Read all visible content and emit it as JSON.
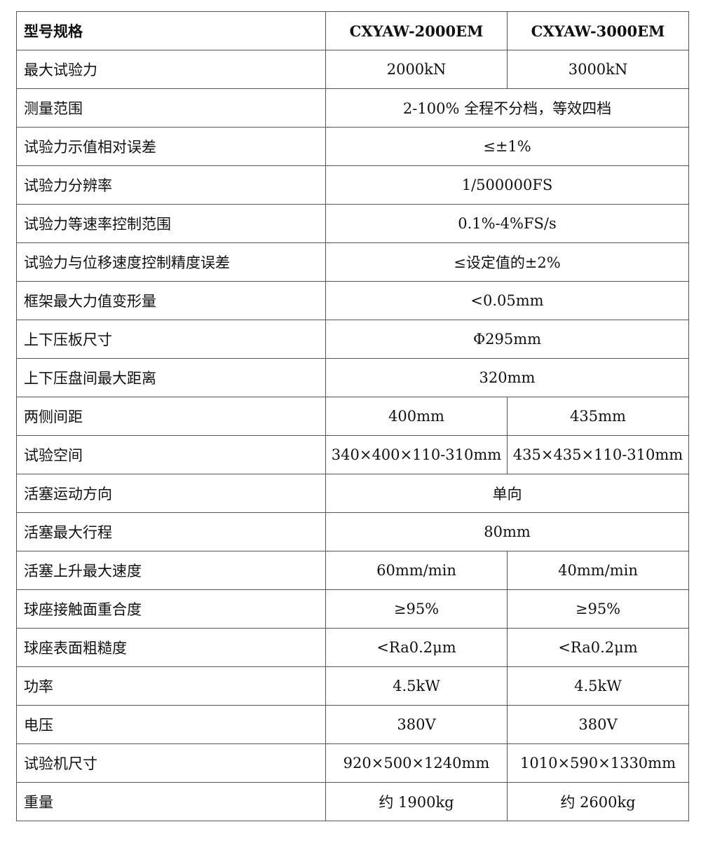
{
  "header": {
    "label": "型号规格",
    "models": [
      "CXYAW-2000EM",
      "CXYAW-3000EM"
    ]
  },
  "rows": [
    {
      "label": "最大试验力",
      "values": [
        "2000kN",
        "3000kN"
      ]
    },
    {
      "label": "测量范围",
      "value": "2-100% 全程不分档，等效四档"
    },
    {
      "label": "试验力示值相对误差",
      "value": "≤±1%"
    },
    {
      "label": "试验力分辨率",
      "value": "1/500000FS"
    },
    {
      "label": "试验力等速率控制范围",
      "value": "0.1%-4%FS/s"
    },
    {
      "label": "试验力与位移速度控制精度误差",
      "value": "≤设定值的±2%"
    },
    {
      "label": "框架最大力值变形量",
      "value": "<0.05mm"
    },
    {
      "label": "上下压板尺寸",
      "value": "Φ295mm"
    },
    {
      "label": "上下压盘间最大距离",
      "value": "320mm"
    },
    {
      "label": "两侧间距",
      "values": [
        "400mm",
        "435mm"
      ]
    },
    {
      "label": "试验空间",
      "values": [
        "340×400×110-310mm",
        "435×435×110-310mm"
      ]
    },
    {
      "label": "活塞运动方向",
      "value": "单向"
    },
    {
      "label": "活塞最大行程",
      "value": "80mm"
    },
    {
      "label": "活塞上升最大速度",
      "values": [
        "60mm/min",
        "40mm/min"
      ]
    },
    {
      "label": "球座接触面重合度",
      "values": [
        "≥95%",
        "≥95%"
      ]
    },
    {
      "label": "球座表面粗糙度",
      "values": [
        "<Ra0.2μm",
        "<Ra0.2μm"
      ]
    },
    {
      "label": "功率",
      "values": [
        "4.5kW",
        "4.5kW"
      ]
    },
    {
      "label": "电压",
      "values": [
        "380V",
        "380V"
      ]
    },
    {
      "label": "试验机尺寸",
      "values": [
        "920×500×1240mm",
        "1010×590×1330mm"
      ]
    },
    {
      "label": "重量",
      "values": [
        "约 1900kg",
        "约 2600kg"
      ]
    }
  ]
}
